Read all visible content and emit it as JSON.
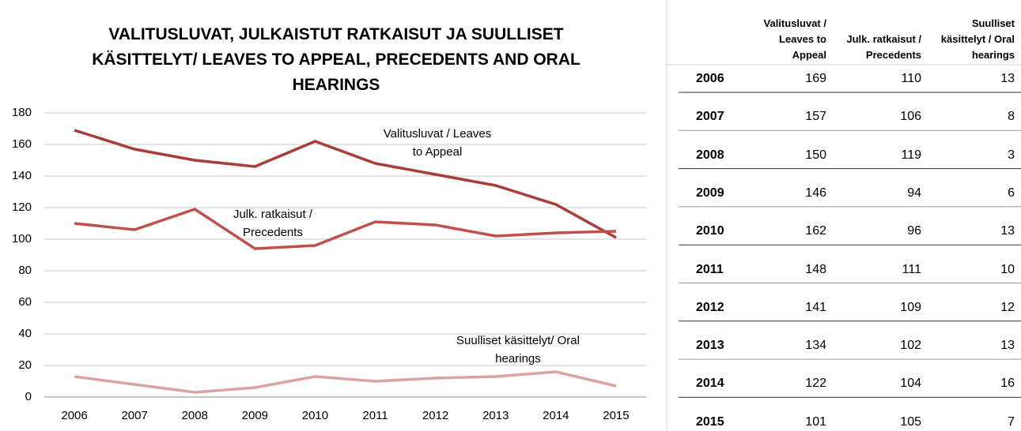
{
  "chart_data": {
    "type": "line",
    "title": "VALITUSLUVAT, JULKAISTUT RATKAISUT JA SUULLISET KÄSITTELYT/ LEAVES TO APPEAL, PRECEDENTS AND ORAL HEARINGS",
    "categories": [
      "2006",
      "2007",
      "2008",
      "2009",
      "2010",
      "2011",
      "2012",
      "2013",
      "2014",
      "2015"
    ],
    "series": [
      {
        "name": "Valitusluvat / Leaves to Appeal",
        "color": "#a83d3b",
        "values": [
          169,
          157,
          150,
          146,
          162,
          148,
          141,
          134,
          122,
          101
        ]
      },
      {
        "name": "Julk. ratkaisut / Precedents",
        "color": "#c0504d",
        "values": [
          110,
          106,
          119,
          94,
          96,
          111,
          109,
          102,
          104,
          105
        ]
      },
      {
        "name": "Suulliset käsittelyt/ Oral hearings",
        "color": "#d8a3a2",
        "values": [
          13,
          8,
          3,
          6,
          13,
          10,
          12,
          13,
          16,
          7
        ]
      }
    ],
    "ylim": [
      0,
      180
    ],
    "yticks": [
      0,
      20,
      40,
      60,
      80,
      100,
      120,
      140,
      160,
      180
    ],
    "grid": true
  },
  "table": {
    "columns": [
      "Valitusluvat / Leaves to Appeal",
      "Julk. ratkaisut / Precedents",
      "Suulliset käsittelyt / Oral hearings"
    ]
  }
}
